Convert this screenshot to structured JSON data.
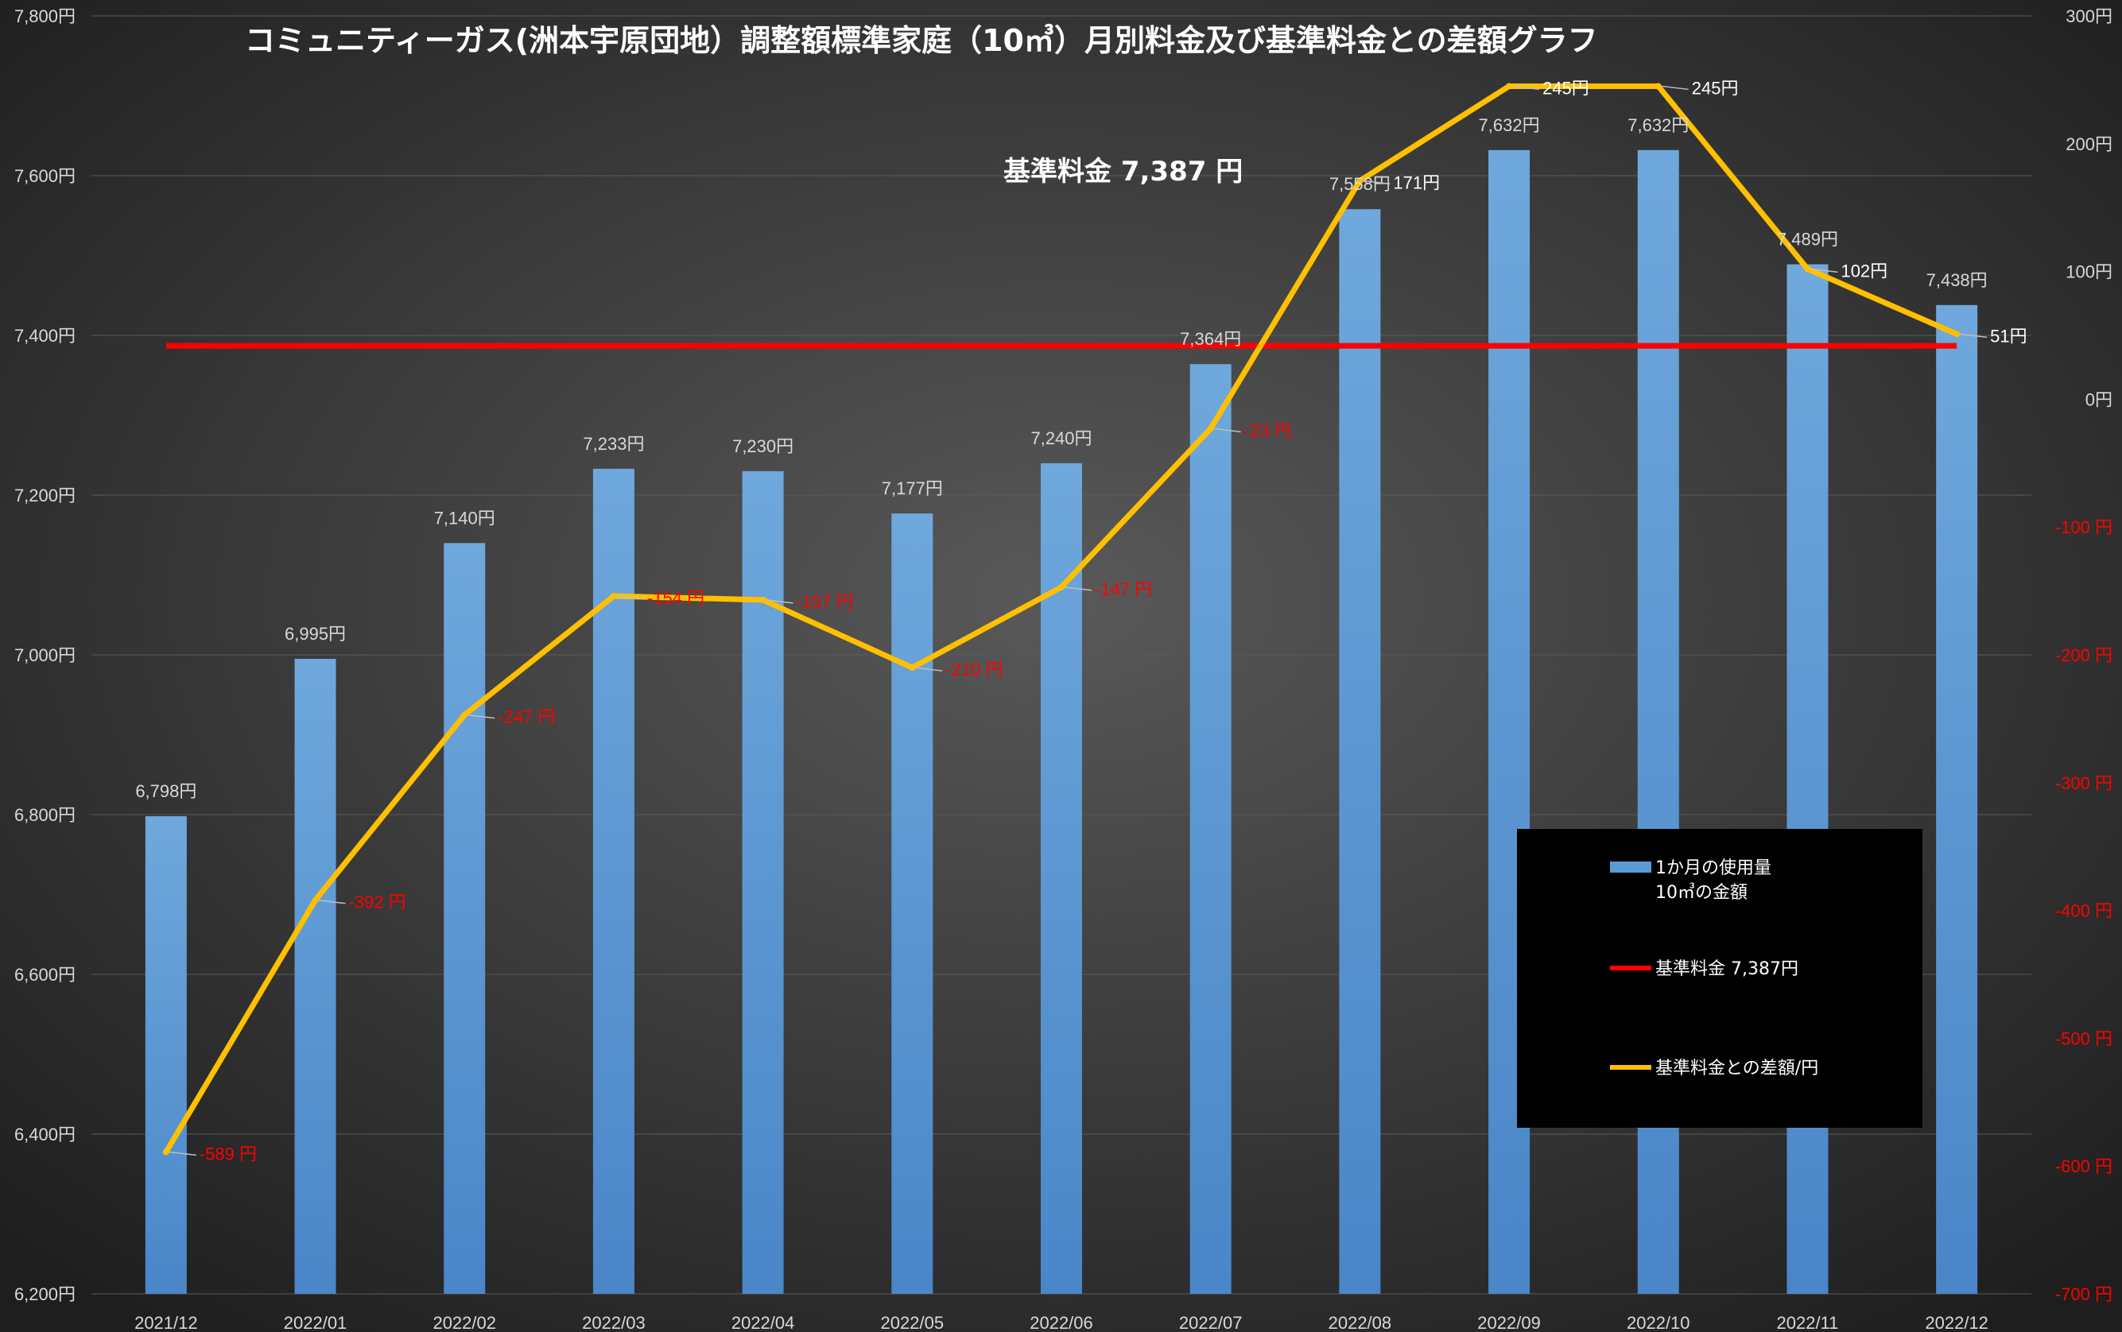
{
  "chart_data": {
    "type": "bar",
    "title": "コミュニティーガス(洲本宇原団地）調整額標準家庭（10㎥）月別料金及び基準料金との差額グラフ",
    "standard_note": "基準料金  7,387  円",
    "categories": [
      "2021/12",
      "2022/01",
      "2022/02",
      "2022/03",
      "2022/04",
      "2022/05",
      "2022/06",
      "2022/07",
      "2022/08",
      "2022/09",
      "2022/10",
      "2022/11",
      "2022/12"
    ],
    "series": [
      {
        "name": "1か月の使用量\n10㎥の金額",
        "axis": "left",
        "kind": "bar",
        "color": "#5b9bd5",
        "values": [
          6798,
          6995,
          7140,
          7233,
          7230,
          7177,
          7240,
          7364,
          7558,
          7632,
          7632,
          7489,
          7438
        ],
        "labels": [
          "6,798円",
          "6,995円",
          "7,140円",
          "7,233円",
          "7,230円",
          "7,177円",
          "7,240円",
          "7,364円",
          "7,558円",
          "7,632円",
          "7,632円",
          "7,489円",
          "7,438円"
        ]
      },
      {
        "name": "基準料金  7,387円",
        "axis": "left",
        "kind": "line",
        "color": "#ff0000",
        "values": [
          7387,
          7387,
          7387,
          7387,
          7387,
          7387,
          7387,
          7387,
          7387,
          7387,
          7387,
          7387,
          7387
        ]
      },
      {
        "name": "基準料金との差額/円",
        "axis": "right",
        "kind": "line",
        "color": "#ffc000",
        "values": [
          -589,
          -392,
          -247,
          -154,
          -157,
          -210,
          -147,
          -23,
          171,
          245,
          245,
          102,
          51
        ],
        "labels": [
          "-589 円",
          "-392 円",
          "-247 円",
          "-154 円",
          "-157 円",
          "-210 円",
          "-147 円",
          "-23 円",
          "171円",
          "245円",
          "245円",
          "102円",
          "51円"
        ]
      }
    ],
    "y_left": {
      "ylim": [
        6200,
        7800
      ],
      "ticks": [
        6200,
        6400,
        6600,
        6800,
        7000,
        7200,
        7400,
        7600,
        7800
      ],
      "tick_labels": [
        "6,200円",
        "6,400円",
        "6,600円",
        "6,800円",
        "7,000円",
        "7,200円",
        "7,400円",
        "7,600円",
        "7,800円"
      ]
    },
    "y_right": {
      "ylim": [
        -700,
        300
      ],
      "ticks": [
        -700,
        -600,
        -500,
        -400,
        -300,
        -200,
        -100,
        0,
        100,
        200,
        300
      ],
      "tick_labels": [
        "-700 円",
        "-600 円",
        "-500 円",
        "-400 円",
        "-300 円",
        "-200 円",
        "-100 円",
        "0円",
        "100円",
        "200円",
        "300円"
      ]
    },
    "grid": true,
    "legend": "bottom-right",
    "legend_labels": {
      "bar_line1": "1か月の使用量",
      "bar_line2": "10㎥の金額",
      "standard": "基準料金  7,387円",
      "diff": "基準料金との差額/円"
    }
  }
}
